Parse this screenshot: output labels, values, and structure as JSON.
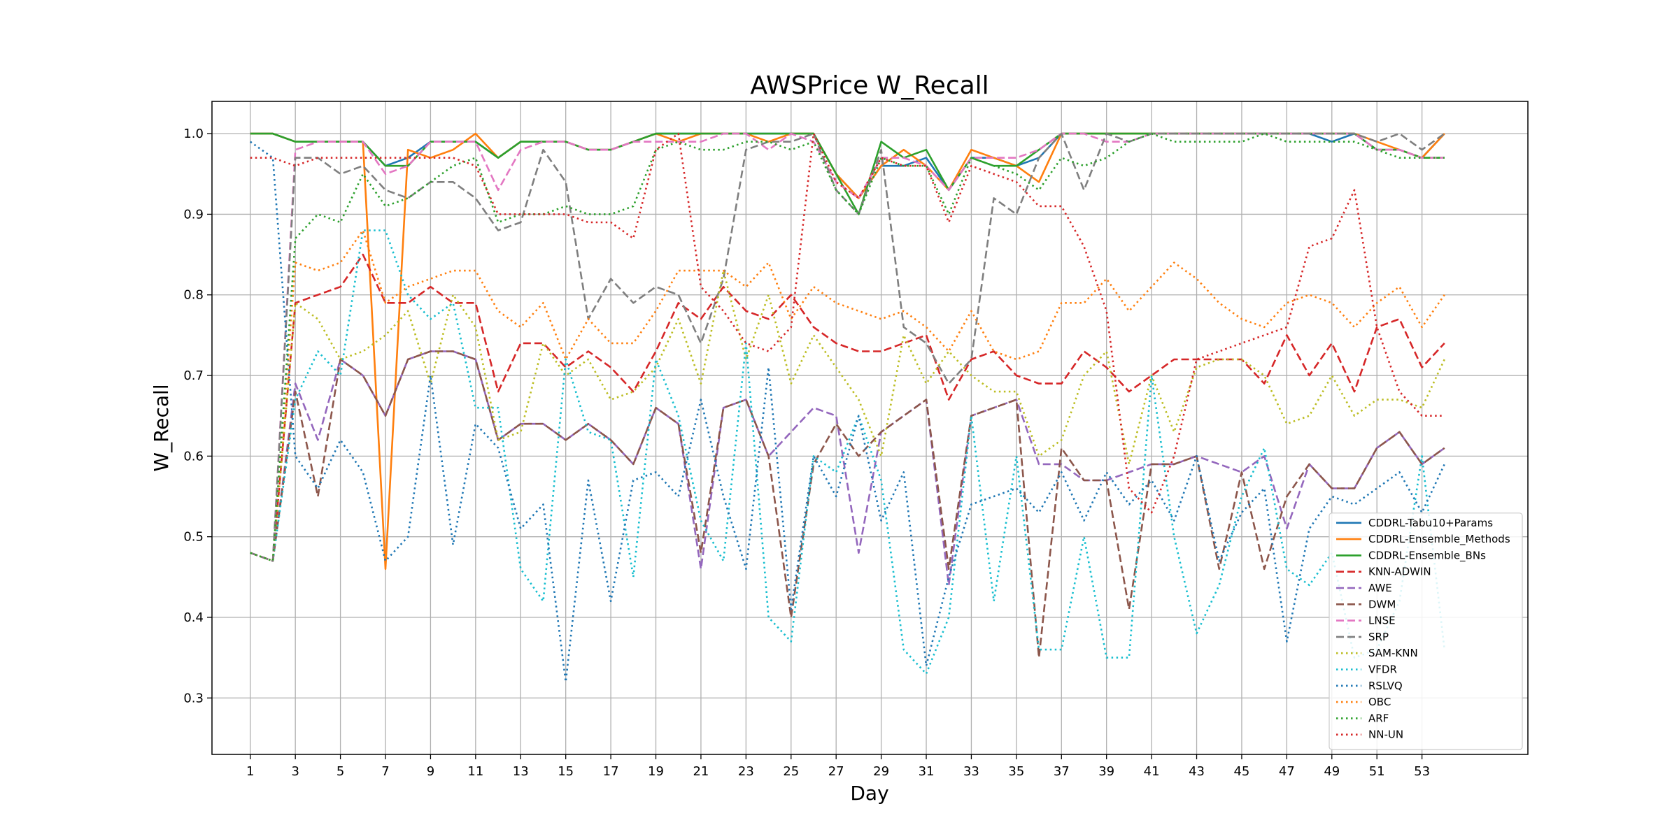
{
  "chart_data": {
    "type": "line",
    "title": "AWSPrice W_Recall",
    "xlabel": "Day",
    "ylabel": "W_Recall",
    "xlim": [
      -0.7,
      57.7
    ],
    "ylim": [
      0.23,
      1.04
    ],
    "xticks": [
      1,
      3,
      5,
      7,
      9,
      11,
      13,
      15,
      17,
      19,
      21,
      23,
      25,
      27,
      29,
      31,
      33,
      35,
      37,
      39,
      41,
      43,
      45,
      47,
      49,
      51,
      53
    ],
    "yticks": [
      0.3,
      0.4,
      0.5,
      0.6,
      0.7,
      0.8,
      0.9,
      1.0
    ],
    "ytick_labels": [
      "0.3",
      "0.4",
      "0.5",
      "0.6",
      "0.7",
      "0.8",
      "0.9",
      "1.0"
    ],
    "grid": true,
    "legend_position": "lower-right",
    "series": [
      {
        "name": "CDDRL-Tabu10+Params",
        "color": "#1f77b4",
        "dash": "solid",
        "values": [
          1.0,
          1.0,
          0.99,
          0.99,
          0.99,
          0.99,
          0.96,
          0.97,
          0.99,
          0.99,
          0.99,
          0.97,
          0.99,
          0.99,
          0.99,
          0.98,
          0.98,
          0.99,
          1.0,
          1.0,
          1.0,
          1.0,
          1.0,
          1.0,
          1.0,
          1.0,
          0.95,
          0.92,
          0.96,
          0.96,
          0.97,
          0.93,
          0.97,
          0.97,
          0.96,
          0.97,
          1.0,
          1.0,
          1.0,
          1.0,
          1.0,
          1.0,
          1.0,
          1.0,
          1.0,
          1.0,
          1.0,
          1.0,
          0.99,
          1.0,
          0.98,
          0.98,
          0.97,
          1.0
        ]
      },
      {
        "name": "CDDRL-Ensemble_Methods",
        "color": "#ff7f0e",
        "dash": "solid",
        "values": [
          1.0,
          1.0,
          0.99,
          0.99,
          0.99,
          0.99,
          0.46,
          0.98,
          0.97,
          0.98,
          1.0,
          0.97,
          0.99,
          0.99,
          0.99,
          0.98,
          0.98,
          0.99,
          1.0,
          0.99,
          1.0,
          1.0,
          1.0,
          0.99,
          1.0,
          1.0,
          0.95,
          0.92,
          0.96,
          0.98,
          0.96,
          0.93,
          0.98,
          0.97,
          0.96,
          0.94,
          1.0,
          1.0,
          1.0,
          1.0,
          1.0,
          1.0,
          1.0,
          1.0,
          1.0,
          1.0,
          1.0,
          1.0,
          1.0,
          1.0,
          0.99,
          0.98,
          0.97,
          1.0
        ]
      },
      {
        "name": "CDDRL-Ensemble_BNs",
        "color": "#2ca02c",
        "dash": "solid",
        "values": [
          1.0,
          1.0,
          0.99,
          0.99,
          0.99,
          0.99,
          0.96,
          0.96,
          0.99,
          0.99,
          0.99,
          0.97,
          0.99,
          0.99,
          0.99,
          0.98,
          0.98,
          0.99,
          1.0,
          1.0,
          1.0,
          1.0,
          1.0,
          1.0,
          1.0,
          1.0,
          0.95,
          0.9,
          0.99,
          0.97,
          0.98,
          0.93,
          0.97,
          0.96,
          0.96,
          0.98,
          1.0,
          1.0,
          1.0,
          1.0,
          1.0,
          1.0,
          1.0,
          1.0,
          1.0,
          1.0,
          1.0,
          1.0,
          1.0,
          1.0,
          0.98,
          0.98,
          0.97,
          0.97
        ]
      },
      {
        "name": "KNN-ADWIN",
        "color": "#d62728",
        "dash": "dashed",
        "values": [
          0.48,
          0.47,
          0.79,
          0.8,
          0.81,
          0.85,
          0.79,
          0.79,
          0.81,
          0.79,
          0.79,
          0.68,
          0.74,
          0.74,
          0.71,
          0.73,
          0.71,
          0.68,
          0.73,
          0.79,
          0.77,
          0.81,
          0.78,
          0.77,
          0.8,
          0.76,
          0.74,
          0.73,
          0.73,
          0.74,
          0.75,
          0.67,
          0.72,
          0.73,
          0.7,
          0.69,
          0.69,
          0.73,
          0.71,
          0.68,
          0.7,
          0.72,
          0.72,
          0.72,
          0.72,
          0.69,
          0.75,
          0.7,
          0.74,
          0.68,
          0.76,
          0.77,
          0.71,
          0.74
        ]
      },
      {
        "name": "AWE",
        "color": "#9467bd",
        "dash": "dashed",
        "values": [
          0.48,
          0.47,
          0.69,
          0.62,
          0.72,
          0.7,
          0.65,
          0.72,
          0.73,
          0.73,
          0.72,
          0.62,
          0.64,
          0.64,
          0.62,
          0.64,
          0.62,
          0.59,
          0.66,
          0.64,
          0.46,
          0.66,
          0.67,
          0.6,
          0.63,
          0.66,
          0.65,
          0.48,
          0.63,
          0.65,
          0.67,
          0.44,
          0.65,
          0.66,
          0.67,
          0.59,
          0.59,
          0.57,
          0.57,
          0.58,
          0.59,
          0.59,
          0.6,
          0.59,
          0.58,
          0.6,
          0.51,
          0.59,
          0.56,
          0.56,
          0.61,
          0.63,
          0.59,
          0.61
        ]
      },
      {
        "name": "DWM",
        "color": "#8c564b",
        "dash": "dashed",
        "values": [
          0.48,
          0.47,
          0.68,
          0.55,
          0.72,
          0.7,
          0.65,
          0.72,
          0.73,
          0.73,
          0.72,
          0.62,
          0.64,
          0.64,
          0.62,
          0.64,
          0.62,
          0.59,
          0.66,
          0.64,
          0.48,
          0.66,
          0.67,
          0.6,
          0.4,
          0.59,
          0.64,
          0.6,
          0.63,
          0.65,
          0.67,
          0.46,
          0.65,
          0.66,
          0.67,
          0.35,
          0.61,
          0.57,
          0.57,
          0.41,
          0.59,
          0.59,
          0.6,
          0.46,
          0.58,
          0.46,
          0.55,
          0.59,
          0.56,
          0.56,
          0.61,
          0.63,
          0.59,
          0.61
        ]
      },
      {
        "name": "LNSE",
        "color": "#e377c2",
        "dash": "dashed",
        "values": [
          0.48,
          0.47,
          0.98,
          0.99,
          0.99,
          0.99,
          0.95,
          0.96,
          0.99,
          0.99,
          0.99,
          0.93,
          0.98,
          0.99,
          0.99,
          0.98,
          0.98,
          0.99,
          0.99,
          0.99,
          0.99,
          1.0,
          1.0,
          0.98,
          1.0,
          0.99,
          0.94,
          0.92,
          0.97,
          0.97,
          0.96,
          0.93,
          0.97,
          0.97,
          0.97,
          0.98,
          1.0,
          1.0,
          0.99,
          0.99,
          1.0,
          1.0,
          1.0,
          1.0,
          1.0,
          1.0,
          1.0,
          1.0,
          1.0,
          1.0,
          0.98,
          0.98,
          0.97,
          0.97
        ]
      },
      {
        "name": "SRP",
        "color": "#7f7f7f",
        "dash": "dashed",
        "values": [
          0.48,
          0.47,
          0.97,
          0.97,
          0.95,
          0.96,
          0.93,
          0.92,
          0.94,
          0.94,
          0.92,
          0.88,
          0.89,
          0.98,
          0.94,
          0.77,
          0.82,
          0.79,
          0.81,
          0.8,
          0.74,
          0.82,
          0.98,
          0.99,
          0.99,
          1.0,
          0.93,
          0.9,
          0.98,
          0.76,
          0.74,
          0.69,
          0.72,
          0.92,
          0.9,
          0.97,
          1.0,
          0.93,
          1.0,
          0.99,
          1.0,
          1.0,
          1.0,
          1.0,
          1.0,
          1.0,
          1.0,
          1.0,
          1.0,
          1.0,
          0.99,
          1.0,
          0.98,
          1.0
        ]
      },
      {
        "name": "SAM-KNN",
        "color": "#bcbd22",
        "dash": "dotted",
        "values": [
          0.48,
          0.47,
          0.79,
          0.77,
          0.72,
          0.73,
          0.75,
          0.78,
          0.69,
          0.8,
          0.76,
          0.62,
          0.63,
          0.74,
          0.7,
          0.72,
          0.67,
          0.68,
          0.71,
          0.77,
          0.69,
          0.83,
          0.72,
          0.8,
          0.69,
          0.75,
          0.71,
          0.67,
          0.6,
          0.75,
          0.69,
          0.73,
          0.7,
          0.68,
          0.68,
          0.6,
          0.62,
          0.7,
          0.73,
          0.59,
          0.7,
          0.63,
          0.71,
          0.72,
          0.72,
          0.7,
          0.64,
          0.65,
          0.7,
          0.65,
          0.67,
          0.67,
          0.66,
          0.72
        ]
      },
      {
        "name": "VFDR",
        "color": "#17becf",
        "dash": "dotted",
        "values": [
          0.48,
          0.47,
          0.67,
          0.73,
          0.7,
          0.88,
          0.88,
          0.8,
          0.77,
          0.79,
          0.66,
          0.66,
          0.46,
          0.42,
          0.72,
          0.63,
          0.62,
          0.45,
          0.72,
          0.65,
          0.52,
          0.47,
          0.74,
          0.4,
          0.37,
          0.6,
          0.58,
          0.65,
          0.57,
          0.36,
          0.33,
          0.4,
          0.65,
          0.42,
          0.6,
          0.36,
          0.36,
          0.5,
          0.35,
          0.35,
          0.7,
          0.5,
          0.38,
          0.44,
          0.55,
          0.61,
          0.46,
          0.44,
          0.48,
          0.35,
          0.36,
          0.42,
          0.6,
          0.36
        ]
      },
      {
        "name": "RSLVQ",
        "color": "#1f77b4",
        "dash": "dotted",
        "values": [
          0.99,
          0.97,
          0.6,
          0.56,
          0.62,
          0.58,
          0.47,
          0.5,
          0.7,
          0.49,
          0.64,
          0.61,
          0.51,
          0.54,
          0.32,
          0.57,
          0.42,
          0.57,
          0.58,
          0.55,
          0.67,
          0.55,
          0.46,
          0.71,
          0.41,
          0.6,
          0.55,
          0.65,
          0.52,
          0.58,
          0.34,
          0.45,
          0.54,
          0.55,
          0.56,
          0.53,
          0.58,
          0.52,
          0.58,
          0.54,
          0.57,
          0.52,
          0.6,
          0.47,
          0.53,
          0.56,
          0.37,
          0.51,
          0.55,
          0.54,
          0.56,
          0.58,
          0.53,
          0.59
        ]
      },
      {
        "name": "OBC",
        "color": "#ff7f0e",
        "dash": "dotted",
        "values": [
          0.48,
          0.47,
          0.84,
          0.83,
          0.84,
          0.88,
          0.79,
          0.81,
          0.82,
          0.83,
          0.83,
          0.78,
          0.76,
          0.79,
          0.72,
          0.77,
          0.74,
          0.74,
          0.78,
          0.83,
          0.83,
          0.83,
          0.81,
          0.84,
          0.77,
          0.81,
          0.79,
          0.78,
          0.77,
          0.78,
          0.76,
          0.73,
          0.78,
          0.73,
          0.72,
          0.73,
          0.79,
          0.79,
          0.82,
          0.78,
          0.81,
          0.84,
          0.82,
          0.79,
          0.77,
          0.76,
          0.79,
          0.8,
          0.79,
          0.76,
          0.79,
          0.81,
          0.76,
          0.8
        ]
      },
      {
        "name": "ARF",
        "color": "#2ca02c",
        "dash": "dotted",
        "values": [
          0.48,
          0.47,
          0.87,
          0.9,
          0.89,
          0.95,
          0.91,
          0.92,
          0.94,
          0.96,
          0.97,
          0.89,
          0.9,
          0.9,
          0.91,
          0.9,
          0.9,
          0.91,
          0.98,
          0.99,
          0.98,
          0.98,
          0.99,
          0.99,
          0.98,
          0.99,
          0.93,
          0.9,
          0.97,
          0.96,
          0.96,
          0.9,
          0.97,
          0.96,
          0.95,
          0.93,
          0.97,
          0.96,
          0.97,
          0.99,
          1.0,
          0.99,
          0.99,
          0.99,
          0.99,
          1.0,
          0.99,
          0.99,
          0.99,
          0.99,
          0.98,
          0.97,
          0.97,
          0.97
        ]
      },
      {
        "name": "NN-UN",
        "color": "#d62728",
        "dash": "dotted",
        "values": [
          0.97,
          0.97,
          0.96,
          0.97,
          0.97,
          0.97,
          0.97,
          0.97,
          0.97,
          0.97,
          0.96,
          0.9,
          0.9,
          0.9,
          0.9,
          0.89,
          0.89,
          0.87,
          0.98,
          1.0,
          0.81,
          0.78,
          0.74,
          0.73,
          0.76,
          1.0,
          0.94,
          0.92,
          0.97,
          0.96,
          0.96,
          0.89,
          0.96,
          0.95,
          0.94,
          0.91,
          0.91,
          0.86,
          0.78,
          0.56,
          0.53,
          0.6,
          0.72,
          0.73,
          0.74,
          0.75,
          0.76,
          0.86,
          0.87,
          0.93,
          0.76,
          0.68,
          0.65,
          0.65
        ]
      }
    ]
  }
}
